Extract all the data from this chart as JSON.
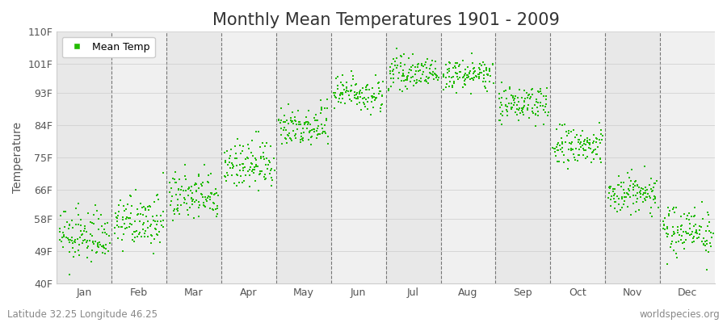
{
  "title": "Monthly Mean Temperatures 1901 - 2009",
  "ylabel": "Temperature",
  "footer_left": "Latitude 32.25 Longitude 46.25",
  "footer_right": "worldspecies.org",
  "legend_label": "Mean Temp",
  "ylim": [
    40,
    110
  ],
  "yticks": [
    40,
    49,
    58,
    66,
    75,
    84,
    93,
    101,
    110
  ],
  "ytick_labels": [
    "40F",
    "49F",
    "58F",
    "66F",
    "75F",
    "84F",
    "93F",
    "101F",
    "110F"
  ],
  "months": [
    "Jan",
    "Feb",
    "Mar",
    "Apr",
    "May",
    "Jun",
    "Jul",
    "Aug",
    "Sep",
    "Oct",
    "Nov",
    "Dec"
  ],
  "month_mean_temps_F": [
    53.0,
    57.0,
    64.0,
    73.0,
    84.0,
    93.0,
    98.5,
    98.0,
    90.0,
    78.0,
    65.0,
    55.0
  ],
  "month_std_temps_F": [
    3.5,
    3.5,
    3.5,
    3.5,
    3.0,
    2.5,
    2.0,
    2.0,
    2.5,
    3.0,
    3.0,
    3.5
  ],
  "n_years": 109,
  "dot_color": "#22bb00",
  "dot_size": 3,
  "bg_colors": [
    "#e8e8e8",
    "#f0f0f0"
  ],
  "vline_color": "#777777",
  "title_fontsize": 15,
  "axis_label_fontsize": 10,
  "tick_fontsize": 9,
  "footer_fontsize": 8.5,
  "figsize": [
    9.0,
    4.0
  ],
  "dpi": 100
}
